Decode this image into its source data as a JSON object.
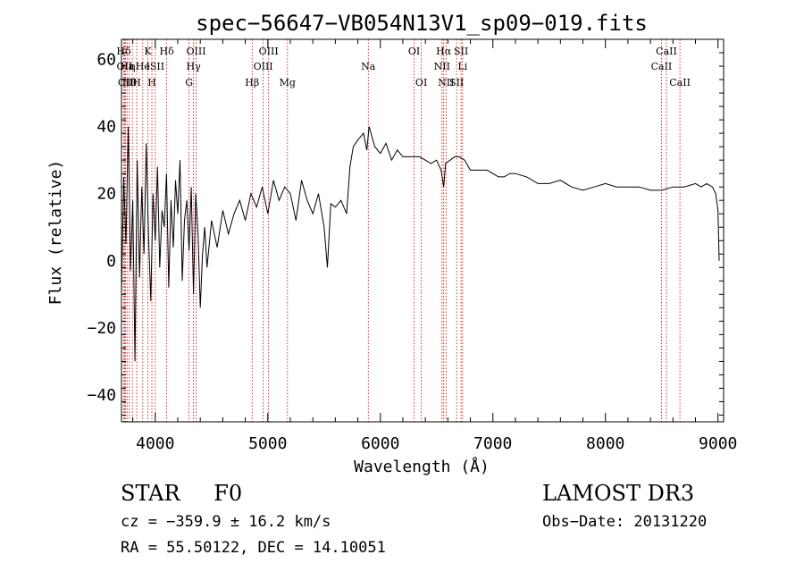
{
  "chart_data": {
    "type": "line",
    "title": "spec−56647−VB054N13V1_sp09−019.fits",
    "xlabel": "Wavelength (Å)",
    "ylabel": "Flux (relative)",
    "xlim": [
      3700,
      9050
    ],
    "ylim": [
      -48,
      66
    ],
    "xticks": [
      {
        "value": 4000,
        "label": "4000"
      },
      {
        "value": 5000,
        "label": "5000"
      },
      {
        "value": 6000,
        "label": "6000"
      },
      {
        "value": 7000,
        "label": "7000"
      },
      {
        "value": 8000,
        "label": "8000"
      },
      {
        "value": 9000,
        "label": "9000"
      }
    ],
    "yticks": [
      {
        "value": 60,
        "label": "60"
      },
      {
        "value": 40,
        "label": "40"
      },
      {
        "value": 20,
        "label": "20"
      },
      {
        "value": 0,
        "label": "0"
      },
      {
        "value": -20,
        "label": "−20"
      },
      {
        "value": -40,
        "label": "−40"
      }
    ],
    "series": [
      {
        "name": "flux",
        "x": [
          3700,
          3720,
          3740,
          3760,
          3780,
          3800,
          3820,
          3840,
          3860,
          3880,
          3900,
          3920,
          3940,
          3960,
          3980,
          4000,
          4020,
          4040,
          4060,
          4080,
          4100,
          4120,
          4140,
          4160,
          4180,
          4200,
          4220,
          4240,
          4260,
          4280,
          4300,
          4320,
          4340,
          4360,
          4380,
          4400,
          4420,
          4440,
          4460,
          4480,
          4500,
          4550,
          4600,
          4650,
          4700,
          4750,
          4800,
          4850,
          4900,
          4950,
          5000,
          5050,
          5100,
          5150,
          5200,
          5250,
          5300,
          5350,
          5400,
          5450,
          5500,
          5530,
          5560,
          5600,
          5650,
          5700,
          5730,
          5760,
          5800,
          5850,
          5880,
          5900,
          5950,
          6000,
          6050,
          6100,
          6150,
          6200,
          6250,
          6300,
          6350,
          6400,
          6450,
          6500,
          6540,
          6563,
          6580,
          6620,
          6660,
          6700,
          6750,
          6800,
          6850,
          6900,
          6950,
          7000,
          7050,
          7100,
          7150,
          7200,
          7300,
          7400,
          7500,
          7600,
          7700,
          7800,
          7900,
          8000,
          8100,
          8200,
          8300,
          8400,
          8500,
          8600,
          8700,
          8800,
          8850,
          8900,
          8950,
          8980,
          9000,
          9010
        ],
        "y": [
          -10,
          25,
          5,
          40,
          -3,
          18,
          -30,
          30,
          -5,
          22,
          2,
          35,
          8,
          -12,
          20,
          6,
          28,
          -2,
          15,
          10,
          26,
          -8,
          18,
          4,
          24,
          14,
          30,
          -6,
          12,
          18,
          3,
          22,
          -10,
          20,
          8,
          -14,
          2,
          10,
          -2,
          5,
          12,
          4,
          15,
          8,
          14,
          18,
          12,
          20,
          16,
          22,
          14,
          24,
          18,
          22,
          20,
          12,
          24,
          18,
          14,
          20,
          10,
          -2,
          17,
          16,
          18,
          14,
          28,
          34,
          36,
          38,
          33,
          40,
          34,
          32,
          35,
          30,
          33,
          31,
          31,
          31,
          31,
          30,
          29,
          30,
          27,
          22,
          29,
          30,
          31,
          31,
          30,
          27,
          27,
          27,
          27,
          26,
          25,
          25,
          26,
          26,
          25,
          23,
          23,
          24,
          22,
          21,
          22,
          23,
          22,
          22,
          22,
          21,
          21,
          22,
          22,
          23,
          22,
          23,
          22,
          20,
          15,
          0
        ]
      }
    ],
    "annotations": [
      {
        "lambda": 3720,
        "row": 1,
        "label": "Hδ"
      },
      {
        "lambda": 3727,
        "row": 2,
        "label": "OII"
      },
      {
        "lambda": 3735,
        "row": 3,
        "label": "CII"
      },
      {
        "lambda": 3750,
        "row": 2,
        "label": "Ha"
      },
      {
        "lambda": 3770,
        "row": 3,
        "label": "Hθ"
      },
      {
        "lambda": 3797,
        "row": 2,
        "label": "η"
      },
      {
        "lambda": 3835,
        "row": 3,
        "label": "H"
      },
      {
        "lambda": 3889,
        "row": 2,
        "label": "He"
      },
      {
        "lambda": 3934,
        "row": 1,
        "label": "K"
      },
      {
        "lambda": 3970,
        "row": 3,
        "label": "H"
      },
      {
        "lambda": 4000,
        "row": 2,
        "label": "ISII"
      },
      {
        "lambda": 4102,
        "row": 1,
        "label": "Hδ"
      },
      {
        "lambda": 4300,
        "row": 3,
        "label": "G"
      },
      {
        "lambda": 4340,
        "row": 2,
        "label": "Hγ"
      },
      {
        "lambda": 4363,
        "row": 1,
        "label": "OIII"
      },
      {
        "lambda": 4861,
        "row": 3,
        "label": "Hβ"
      },
      {
        "lambda": 4959,
        "row": 2,
        "label": "OIII"
      },
      {
        "lambda": 5007,
        "row": 1,
        "label": "OIII"
      },
      {
        "lambda": 5175,
        "row": 3,
        "label": "Mg"
      },
      {
        "lambda": 5893,
        "row": 2,
        "label": "Na"
      },
      {
        "lambda": 6300,
        "row": 1,
        "label": "OI"
      },
      {
        "lambda": 6364,
        "row": 3,
        "label": "OI"
      },
      {
        "lambda": 6548,
        "row": 2,
        "label": "NII"
      },
      {
        "lambda": 6563,
        "row": 1,
        "label": "Hα"
      },
      {
        "lambda": 6584,
        "row": 3,
        "label": "NII"
      },
      {
        "lambda": 6678,
        "row": 3,
        "label": "SII"
      },
      {
        "lambda": 6717,
        "row": 1,
        "label": "SII"
      },
      {
        "lambda": 6731,
        "row": 2,
        "label": "Li"
      },
      {
        "lambda": 8498,
        "row": 2,
        "label": "CaII"
      },
      {
        "lambda": 8542,
        "row": 1,
        "label": "CaII"
      },
      {
        "lambda": 8662,
        "row": 3,
        "label": "CaII"
      }
    ]
  },
  "info": {
    "class_label": "STAR",
    "subclass_label": "F0",
    "survey": "LAMOST DR3",
    "redshift_text": "cz = −359.9 ± 16.2 km/s",
    "obs_date_text": "Obs−Date: 20131220",
    "coords_text": "RA =  55.50122, DEC =  14.10051"
  },
  "colors": {
    "frame": "#000000",
    "spectrum": "#000000",
    "line_marker": "#cc0000",
    "background": "#ffffff"
  }
}
